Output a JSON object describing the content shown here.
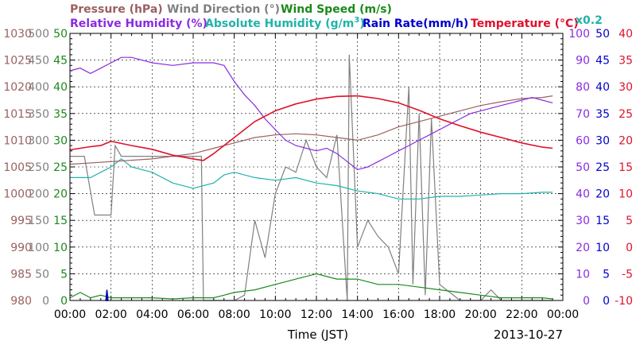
{
  "chart_data": {
    "type": "line",
    "title": "",
    "date": "2013-10-27",
    "xlabel": "Time (JST)",
    "x_ticks": [
      "00:00",
      "02:00",
      "04:00",
      "06:00",
      "08:00",
      "10:00",
      "12:00",
      "14:00",
      "16:00",
      "18:00",
      "20:00",
      "22:00",
      "00:00"
    ],
    "x_range_hours": [
      0,
      24
    ],
    "grid": true,
    "legend": {
      "row1": [
        {
          "label": "Pressure (hPa)",
          "color": "#9b6060"
        },
        {
          "label": "Wind Direction (°)",
          "color": "#808080"
        },
        {
          "label": "Wind Speed (m/s)",
          "color": "#1a8a1a"
        }
      ],
      "row2": [
        {
          "label": "Relative Humidity (%)",
          "color": "#8a2be2"
        },
        {
          "label": "Absolute Humidity (g/m",
          "sup": "3",
          "tail": ")",
          "color": "#20b2aa"
        },
        {
          "label": "Rain Rate(mm/h)",
          "color": "#0000cc"
        },
        {
          "label": "Temperature (°C)",
          "color": "#e0102c"
        }
      ],
      "multiplier": "x0.2"
    },
    "axes": {
      "pressure": {
        "ticks": [
          "1030",
          "1025",
          "1020",
          "1015",
          "1010",
          "1005",
          "1000",
          "995",
          "990",
          "985",
          "980"
        ],
        "range": [
          980,
          1030
        ],
        "color": "#9b6060"
      },
      "wind_direction": {
        "ticks": [
          "500",
          "450",
          "400",
          "350",
          "300",
          "250",
          "200",
          "150",
          "100",
          "50",
          "0"
        ],
        "range": [
          0,
          500
        ],
        "color": "#808080"
      },
      "wind_speed": {
        "ticks": [
          "50",
          "45",
          "40",
          "35",
          "30",
          "25",
          "20",
          "15",
          "10",
          "5",
          "0"
        ],
        "range": [
          0,
          50
        ],
        "color": "#1a8a1a"
      },
      "relative_humidity": {
        "ticks": [
          "100",
          "90",
          "80",
          "70",
          "60",
          "50",
          "40",
          "30",
          "20",
          "10",
          "0"
        ],
        "range": [
          0,
          100
        ],
        "color": "#8a2be2"
      },
      "rain_rate": {
        "ticks": [
          "50",
          "45",
          "40",
          "35",
          "30",
          "25",
          "20",
          "15",
          "10",
          "5",
          "0"
        ],
        "range": [
          0,
          50
        ],
        "color": "#0000cc"
      },
      "temperature": {
        "ticks": [
          "40",
          "35",
          "30",
          "25",
          "20",
          "15",
          "10",
          "5",
          "0",
          "-5",
          "-10"
        ],
        "range": [
          -10,
          40
        ],
        "color": "#e0102c"
      }
    },
    "series": [
      {
        "name": "Pressure (hPa)",
        "color": "#9b6060",
        "axis": "pressure",
        "x": [
          0,
          2,
          4,
          6,
          7,
          8,
          9,
          10,
          11,
          12,
          13,
          14,
          15,
          16,
          17,
          18,
          19,
          20,
          21,
          22,
          23,
          23.5
        ],
        "y": [
          1005.5,
          1006,
          1006.5,
          1007.5,
          1008.5,
          1009.5,
          1010.5,
          1011,
          1011.2,
          1011,
          1010.5,
          1010,
          1011,
          1012.5,
          1013.5,
          1014.5,
          1015.5,
          1016.5,
          1017.2,
          1017.8,
          1018,
          1018.3
        ]
      },
      {
        "name": "Temperature (°C)",
        "color": "#e0102c",
        "axis": "temperature",
        "x": [
          0,
          1,
          1.5,
          2,
          3,
          4,
          5,
          6,
          6.5,
          7,
          8,
          9,
          10,
          11,
          12,
          13,
          14,
          15,
          16,
          17,
          18,
          19,
          20,
          21,
          22,
          23,
          23.5
        ],
        "y": [
          18.2,
          18.8,
          19,
          19.8,
          19,
          18.3,
          17.2,
          16.5,
          16.2,
          17.5,
          20.5,
          23.5,
          25.5,
          26.8,
          27.7,
          28.2,
          28.3,
          27.8,
          27,
          25.6,
          24,
          22.7,
          21.5,
          20.5,
          19.5,
          18.7,
          18.5
        ]
      },
      {
        "name": "Relative Humidity (%)",
        "color": "#8a2be2",
        "axis": "relative_humidity",
        "x": [
          0,
          0.5,
          1,
          1.5,
          2,
          2.5,
          3,
          3.5,
          4,
          5,
          6,
          7,
          7.5,
          8,
          8.5,
          9,
          9.5,
          10,
          10.5,
          11,
          11.5,
          12,
          12.5,
          13,
          13.5,
          14,
          14.5,
          15,
          15.5,
          16,
          16.5,
          17,
          17.5,
          18,
          18.5,
          19,
          19.5,
          20,
          20.5,
          21,
          21.5,
          22,
          22.5,
          23,
          23.5
        ],
        "y": [
          86,
          87,
          85,
          87,
          89,
          91,
          91,
          90,
          89,
          88,
          89,
          89,
          88,
          82,
          77,
          73,
          68,
          64,
          60,
          58,
          57,
          56,
          57,
          55,
          52,
          49,
          50,
          52,
          54,
          56,
          58,
          60,
          62,
          64,
          66,
          68,
          70,
          71,
          72,
          73,
          74,
          75,
          76,
          75,
          74
        ]
      },
      {
        "name": "Absolute Humidity (g/m3)",
        "color": "#20b2aa",
        "axis": "relative_humidity",
        "x": [
          0,
          1,
          2,
          2.5,
          3,
          4,
          5,
          6,
          7,
          7.5,
          8,
          9,
          10,
          11,
          12,
          13,
          14,
          15,
          16,
          17,
          18,
          19,
          20,
          21,
          22,
          23,
          23.5
        ],
        "y": [
          46,
          46,
          50,
          53,
          50,
          48,
          44,
          42,
          44,
          47,
          48,
          46,
          45,
          46,
          44,
          43,
          41,
          40,
          38,
          38,
          39,
          39,
          39.5,
          40,
          40,
          40.5,
          40.5
        ]
      },
      {
        "name": "Wind Direction (°)",
        "color": "#808080",
        "axis": "wind_direction",
        "x": [
          0,
          0.7,
          1.2,
          1.5,
          2,
          2.2,
          2.5,
          3,
          4,
          5,
          6,
          6.4,
          6.5,
          7,
          7.5,
          8,
          8.5,
          9,
          9.5,
          10,
          10.5,
          11,
          11.5,
          12,
          12.5,
          13,
          13.5,
          13.6,
          14,
          14.5,
          15,
          15.5,
          16,
          16.5,
          16.7,
          17,
          17.3,
          17.6,
          18,
          19,
          20,
          20.5,
          21,
          22,
          23,
          23.5
        ],
        "y": [
          270,
          270,
          160,
          160,
          160,
          290,
          270,
          270,
          270,
          270,
          270,
          270,
          0,
          0,
          0,
          0,
          10,
          150,
          80,
          200,
          250,
          240,
          300,
          250,
          230,
          310,
          0,
          460,
          100,
          150,
          120,
          100,
          50,
          400,
          30,
          350,
          10,
          340,
          30,
          0,
          0,
          20,
          0,
          0,
          0,
          0
        ]
      },
      {
        "name": "Wind Speed (m/s)",
        "color": "#1a8a1a",
        "axis": "wind_speed",
        "x": [
          0,
          0.5,
          1,
          1.5,
          2,
          3,
          4,
          5,
          6,
          7,
          7.5,
          8,
          9,
          10,
          11,
          12,
          13,
          14,
          15,
          16,
          17,
          18,
          19,
          20,
          21,
          22,
          23,
          23.5
        ],
        "y": [
          0.5,
          1.5,
          0.5,
          1,
          0.5,
          0.5,
          0.5,
          0.3,
          0.5,
          0.5,
          1,
          1.5,
          2,
          3,
          4,
          5,
          4,
          4,
          3,
          3,
          2.5,
          2,
          1.5,
          1,
          0.5,
          0.5,
          0.5,
          0.3
        ]
      },
      {
        "name": "Rain Rate(mm/h)",
        "color": "#0000cc",
        "axis": "rain_rate",
        "x": [
          1.75,
          1.8,
          1.85
        ],
        "y": [
          0,
          2,
          0
        ]
      }
    ]
  }
}
